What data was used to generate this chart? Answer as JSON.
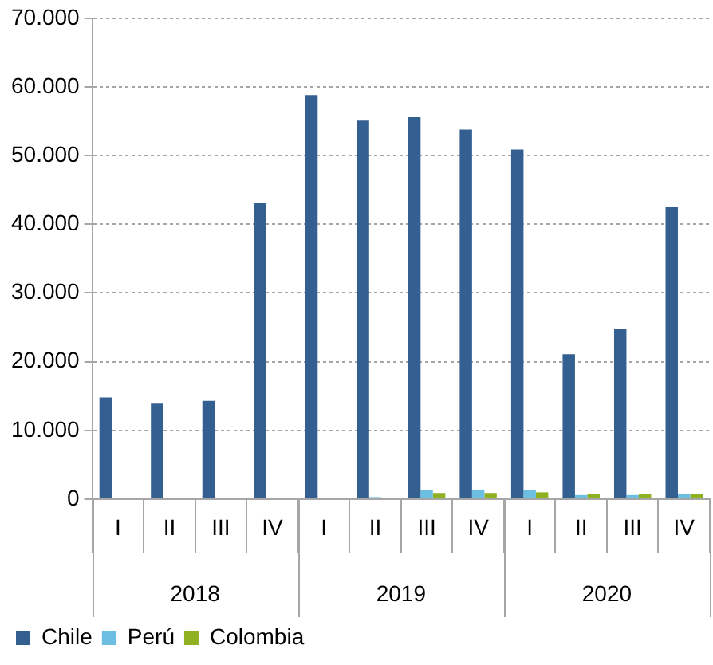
{
  "chart_data": {
    "type": "bar",
    "categories": [
      "I",
      "II",
      "III",
      "IV",
      "I",
      "II",
      "III",
      "IV",
      "I",
      "II",
      "III",
      "IV"
    ],
    "series": [
      {
        "name": "Chile",
        "color": "#345f91",
        "values": [
          14800,
          13900,
          14300,
          43100,
          58800,
          55100,
          55600,
          53800,
          50900,
          21100,
          24800,
          42600
        ]
      },
      {
        "name": "Perú",
        "color": "#6cbfe3",
        "values": [
          null,
          null,
          null,
          null,
          null,
          300,
          1300,
          1400,
          1300,
          600,
          600,
          800
        ]
      },
      {
        "name": "Colombia",
        "color": "#8eb021",
        "values": [
          null,
          null,
          null,
          null,
          null,
          200,
          900,
          900,
          1000,
          800,
          800,
          800
        ]
      }
    ],
    "ylim": [
      0,
      70000
    ],
    "yticks": [
      {
        "value": 0,
        "label": "0"
      },
      {
        "value": 10000,
        "label": "10.000"
      },
      {
        "value": 20000,
        "label": "20.000"
      },
      {
        "value": 30000,
        "label": "30.000"
      },
      {
        "value": 40000,
        "label": "40.000"
      },
      {
        "value": 50000,
        "label": "50.000"
      },
      {
        "value": 60000,
        "label": "60.000"
      },
      {
        "value": 70000,
        "label": "70.000"
      }
    ],
    "annotations": [
      "2018",
      "2019",
      "2020"
    ],
    "grid": "y",
    "legend": "bottom left"
  }
}
